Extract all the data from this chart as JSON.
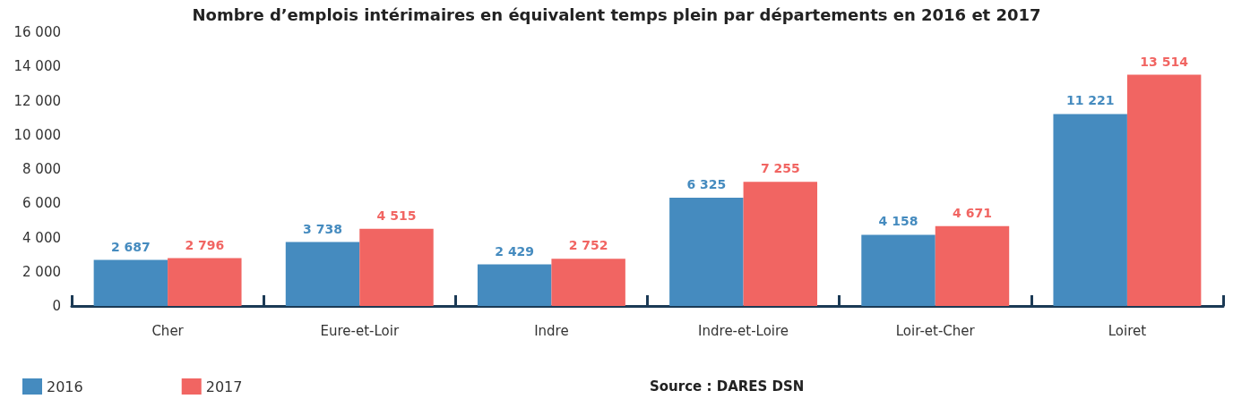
{
  "chart_data": {
    "type": "bar",
    "title": "Nombre d’emplois intérimaires en équivalent temps plein par départements en 2016 et 2017",
    "categories": [
      "Cher",
      "Eure-et-Loir",
      "Indre",
      "Indre-et-Loire",
      "Loir-et-Cher",
      "Loiret"
    ],
    "series": [
      {
        "name": "2016",
        "color": "#458bbf",
        "values": [
          2687,
          3738,
          2429,
          6325,
          4158,
          11221
        ],
        "value_labels": [
          "2 687",
          "3 738",
          "2 429",
          "6 325",
          "4 158",
          "11 221"
        ]
      },
      {
        "name": "2017",
        "color": "#f16562",
        "values": [
          2796,
          4515,
          2752,
          7255,
          4671,
          13514
        ],
        "value_labels": [
          "2 796",
          "4 515",
          "2 752",
          "7 255",
          "4 671",
          "13 514"
        ]
      }
    ],
    "ylim": [
      0,
      16000
    ],
    "yticks": [
      0,
      {
        "value": 2000,
        "label": "2 000"
      },
      {
        "value": 4000,
        "label": "4 000"
      },
      {
        "value": 6000,
        "label": "6 000"
      },
      {
        "value": 8000,
        "label": "8 000"
      },
      {
        "value": 10000,
        "label": "10 000"
      },
      {
        "value": 12000,
        "label": "12 000"
      },
      {
        "value": 14000,
        "label": "14 000"
      },
      {
        "value": 16000,
        "label": "16 000"
      }
    ],
    "legend": "bottom left",
    "annotations": [
      "Source : DARES DSN"
    ]
  }
}
